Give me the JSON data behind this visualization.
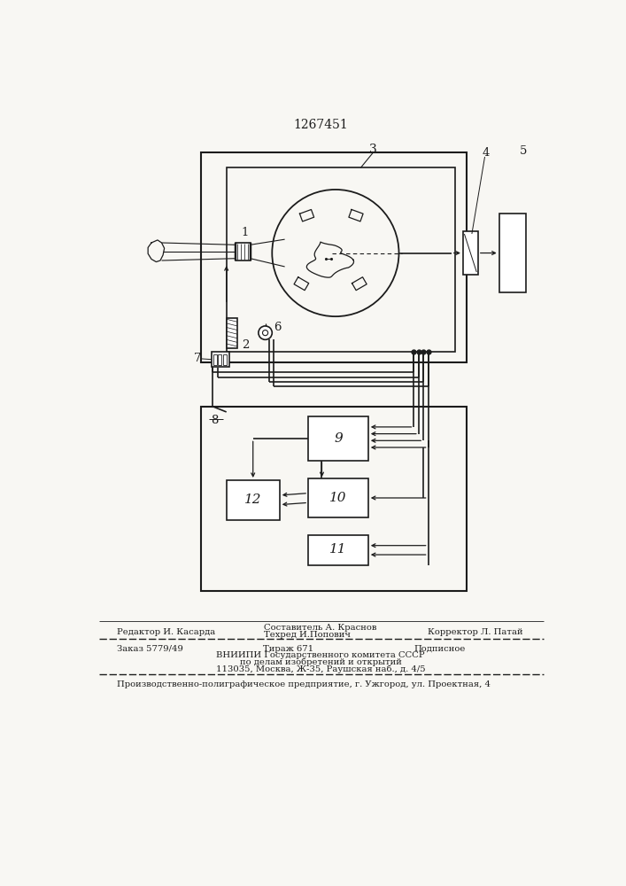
{
  "title": "1267451",
  "bg_color": "#f8f7f3",
  "line_color": "#1c1c1c",
  "footer_line1_left": "Редактор И. Касарда",
  "footer_line1_mid1": "Составитель А. Краснов",
  "footer_line1_mid2": "Техред И.Попович",
  "footer_line1_right": "Корректор Л. Патай",
  "footer_line2_col1": "Заказ 5779/49",
  "footer_line2_col2": "Тираж 671",
  "footer_line2_col3": "Подписное",
  "footer_line3": "ВНИИПИ Государственного комитета СССР",
  "footer_line4": "по делам изобретений и открытий",
  "footer_line5": "113035, Москва, Ж-35, Раушская наб., д. 4/5",
  "footer_line6": "Производственно-полиграфическое предприятие, г. Ужгород, ул. Проектная, 4"
}
